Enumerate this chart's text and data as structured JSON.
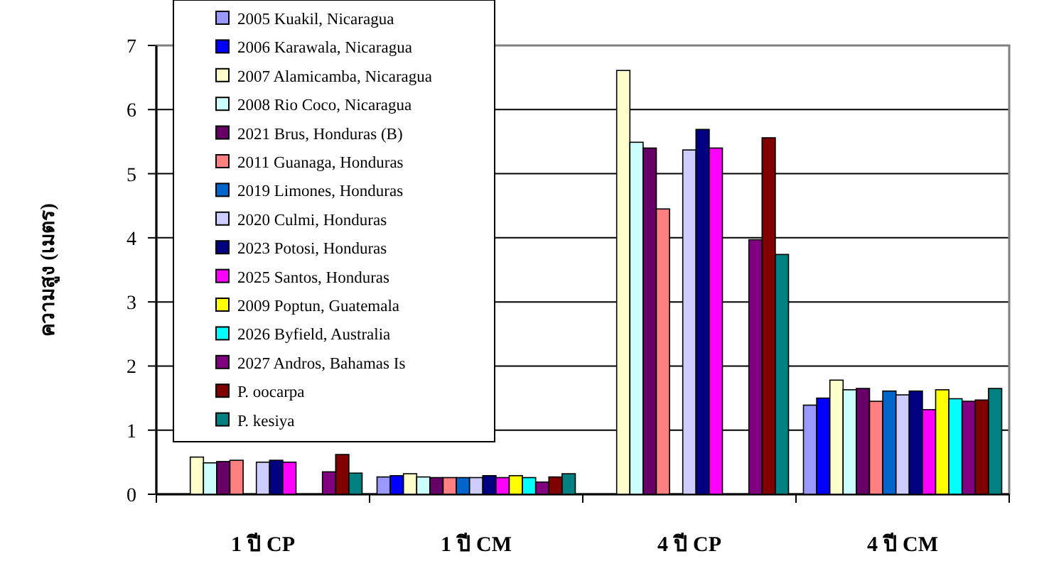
{
  "chart_data": {
    "type": "bar",
    "ylabel": "ความสูง (เมตร)",
    "categories": [
      "1 ปี CP",
      "1 ปี CM",
      "4 ปี CP",
      "4 ปี CM"
    ],
    "ylim": [
      0,
      7
    ],
    "yticks": [
      0,
      1,
      2,
      3,
      4,
      5,
      6,
      7
    ],
    "grid": "y",
    "legend": "top left",
    "series": [
      {
        "name": "2005 Kuakil, Nicaragua",
        "color": "#9999ff",
        "values": [
          null,
          0.27,
          null,
          1.39
        ]
      },
      {
        "name": "2006 Karawala, Nicaragua",
        "color": "#0000ff",
        "values": [
          null,
          0.29,
          null,
          1.5
        ]
      },
      {
        "name": "2007 Alamicamba, Nicaragua",
        "color": "#ffffcc",
        "values": [
          0.58,
          0.32,
          6.61,
          1.78
        ]
      },
      {
        "name": "2008 Rio Coco, Nicaragua",
        "color": "#ccffff",
        "values": [
          0.49,
          0.27,
          5.49,
          1.63
        ]
      },
      {
        "name": "2021 Brus, Honduras (B)",
        "color": "#660066",
        "values": [
          0.51,
          0.26,
          5.4,
          1.65
        ]
      },
      {
        "name": "2011 Guanaga, Honduras",
        "color": "#ff8080",
        "values": [
          0.53,
          0.26,
          4.45,
          1.45
        ]
      },
      {
        "name": "2019 Limones, Honduras",
        "color": "#0066cc",
        "values": [
          null,
          0.26,
          null,
          1.61
        ]
      },
      {
        "name": "2020 Culmi, Honduras",
        "color": "#ccccff",
        "values": [
          0.5,
          0.26,
          5.37,
          1.55
        ]
      },
      {
        "name": "2023 Potosi, Honduras",
        "color": "#000080",
        "values": [
          0.53,
          0.29,
          5.69,
          1.61
        ]
      },
      {
        "name": "2025 Santos, Honduras",
        "color": "#ff00ff",
        "values": [
          0.5,
          0.26,
          5.4,
          1.32
        ]
      },
      {
        "name": "2009 Poptun, Guatemala",
        "color": "#ffff00",
        "values": [
          null,
          0.29,
          null,
          1.63
        ]
      },
      {
        "name": "2026 Byfield, Australia",
        "color": "#00ffff",
        "values": [
          null,
          0.26,
          null,
          1.49
        ]
      },
      {
        "name": "2027 Andros, Bahamas Is",
        "color": "#800080",
        "values": [
          0.35,
          0.19,
          3.97,
          1.45
        ]
      },
      {
        "name": "P. oocarpa",
        "color": "#800000",
        "values": [
          0.62,
          0.27,
          5.56,
          1.47
        ]
      },
      {
        "name": "P. kesiya",
        "color": "#008080",
        "values": [
          0.33,
          0.32,
          3.74,
          1.65
        ]
      }
    ]
  }
}
